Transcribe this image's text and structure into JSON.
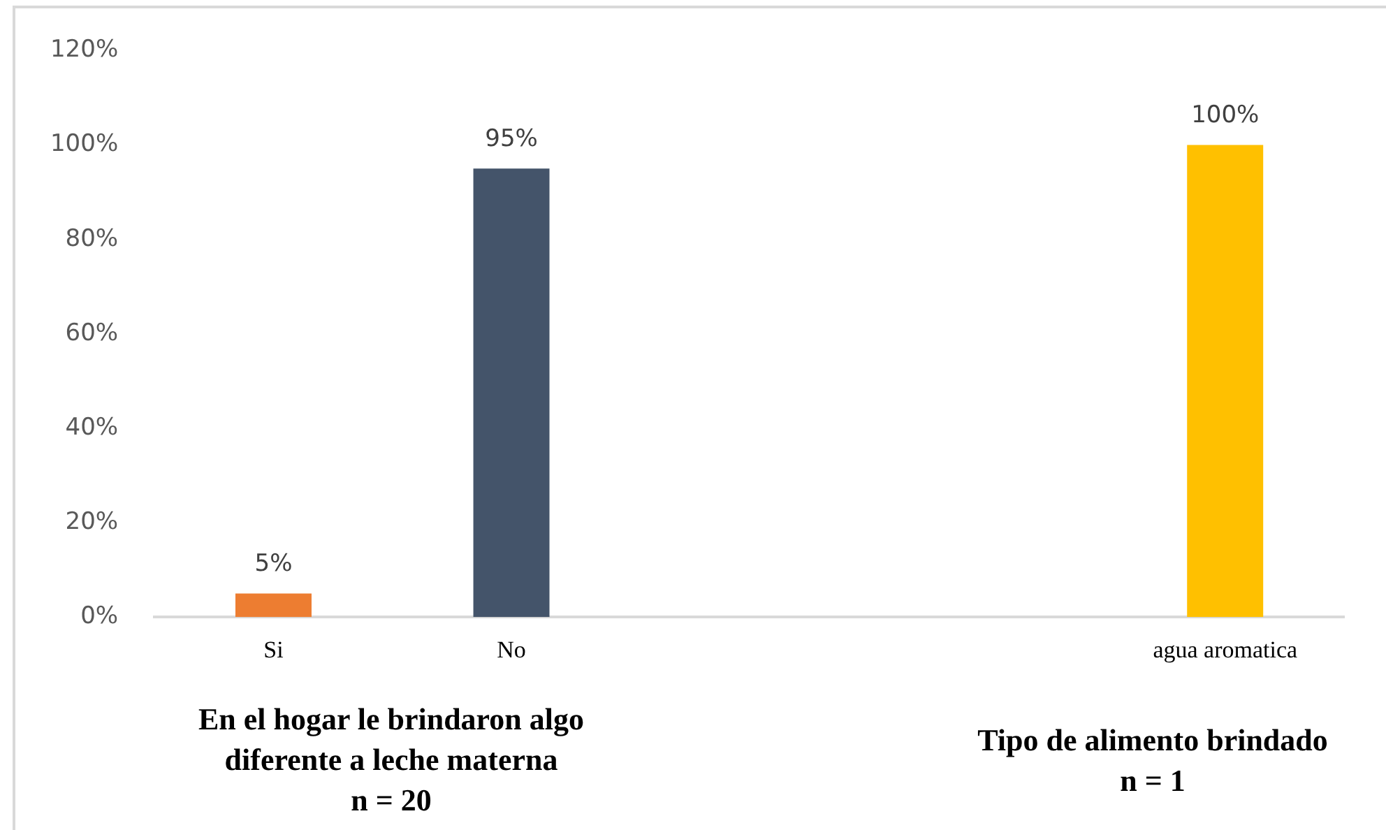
{
  "chart_data": {
    "type": "bar",
    "categories": [
      "Si",
      "No",
      null,
      null,
      "agua aromatica"
    ],
    "values": [
      5,
      95,
      null,
      null,
      100
    ],
    "colors": [
      "#ed7d31",
      "#44546a",
      "#44546a",
      "#44546a",
      "#ffc000"
    ],
    "ylim": [
      0,
      120
    ],
    "yticks": [
      {
        "value": 0,
        "label": "0%"
      },
      {
        "value": 20,
        "label": "20%"
      },
      {
        "value": 40,
        "label": "40%"
      },
      {
        "value": 60,
        "label": "60%"
      },
      {
        "value": 80,
        "label": "80%"
      },
      {
        "value": 100,
        "label": "100%"
      },
      {
        "value": 120,
        "label": "120%"
      }
    ],
    "value_labels": [
      "5%",
      "95%",
      null,
      null,
      "100%"
    ],
    "grid": false,
    "legend": false,
    "annotations": [
      "En el hogar le brindaron algo\ndiferente a leche materna\nn = 20",
      "Tipo de alimento brindado\nn = 1"
    ]
  }
}
